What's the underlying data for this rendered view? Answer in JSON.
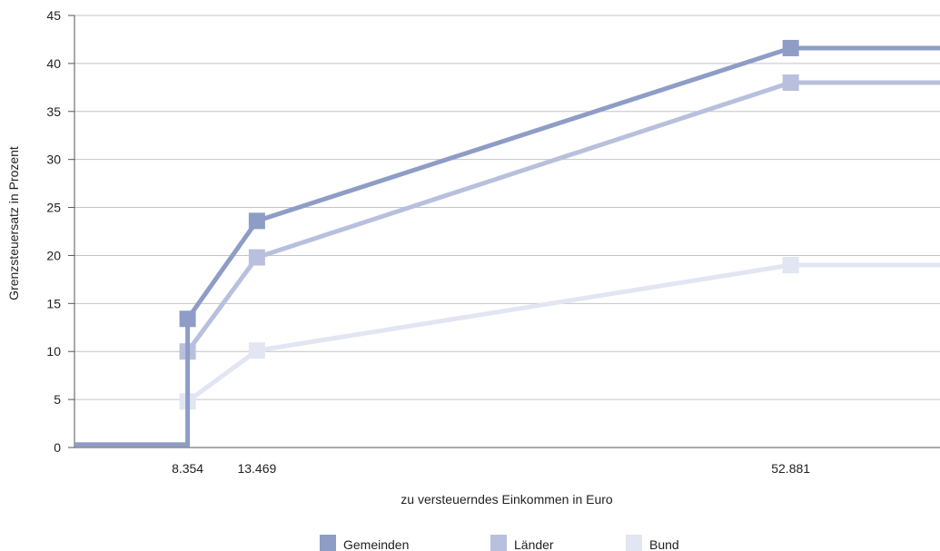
{
  "chart_data": {
    "type": "line",
    "title": "",
    "xlabel": "zu versteuerndes Einkommen in Euro",
    "ylabel": "Grenzsteuersatz in Prozent",
    "ylim": [
      0,
      45
    ],
    "yticks": [
      "0",
      "5",
      "10",
      "15",
      "20",
      "25",
      "30",
      "35",
      "40",
      "45"
    ],
    "xticks": [
      {
        "value": 8354,
        "label": "8.354"
      },
      {
        "value": 13469,
        "label": "13.469"
      },
      {
        "value": 52881,
        "label": "52.881"
      }
    ],
    "xlim": [
      0,
      63900
    ],
    "grid": true,
    "legend_position": "bottom",
    "series": [
      {
        "name": "Gemeinden",
        "color": "#8e9dc6",
        "points": [
          [
            0,
            0.3
          ],
          [
            8354,
            0.3
          ],
          [
            8354,
            13.4
          ],
          [
            13469,
            23.6
          ],
          [
            52881,
            41.6
          ],
          [
            63900,
            41.6
          ]
        ],
        "markers": [
          [
            8354,
            13.4
          ],
          [
            13469,
            23.6
          ],
          [
            52881,
            41.6
          ]
        ]
      },
      {
        "name": "Länder",
        "color": "#b8c0dd",
        "points": [
          [
            8354,
            10.0
          ],
          [
            13469,
            19.8
          ],
          [
            52881,
            38.0
          ],
          [
            63900,
            38.0
          ]
        ],
        "markers": [
          [
            8354,
            10.0
          ],
          [
            13469,
            19.8
          ],
          [
            52881,
            38.0
          ]
        ]
      },
      {
        "name": "Bund",
        "color": "#e2e5f2",
        "points": [
          [
            8354,
            4.8
          ],
          [
            13469,
            10.1
          ],
          [
            52881,
            19.0
          ],
          [
            63900,
            19.0
          ]
        ],
        "markers": [
          [
            8354,
            4.8
          ],
          [
            13469,
            10.1
          ],
          [
            52881,
            19.0
          ]
        ]
      }
    ]
  }
}
